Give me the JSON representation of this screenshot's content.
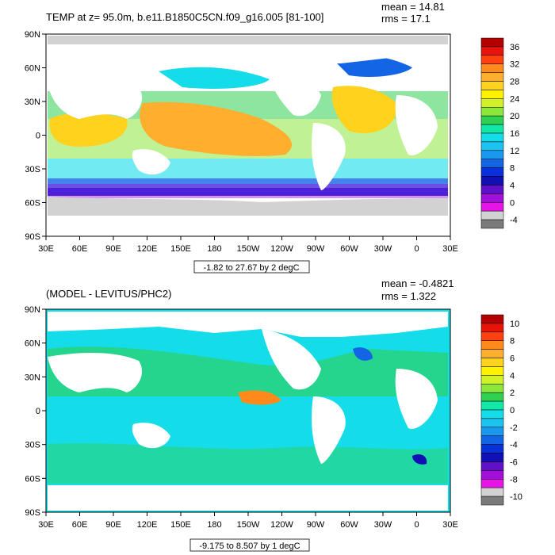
{
  "panel1": {
    "title": "TEMP at z=  95.0m, b.e11.B1850C5CN.f09_g16.005 [81-100]",
    "mean_text": "mean = 14.81",
    "rms_text": "rms = 17.1",
    "range_text": "-1.82 to 27.67 by 2 degC",
    "colorbar": {
      "labels": [
        "36",
        "32",
        "28",
        "24",
        "20",
        "16",
        "12",
        "8",
        "4",
        "0",
        "-4"
      ],
      "colors": [
        "#b40000",
        "#e8140c",
        "#ff4010",
        "#ff8a1c",
        "#ffae2e",
        "#ffd21e",
        "#fff200",
        "#d2f028",
        "#8ce63c",
        "#30d050",
        "#12e8a8",
        "#14dce8",
        "#1ec2f0",
        "#1a98f0",
        "#1464e6",
        "#0a30dc",
        "#1010b4",
        "#6010c8",
        "#a010d8",
        "#e614e6",
        "#d2d2d2",
        "#7a7a7a"
      ]
    }
  },
  "panel2": {
    "title": "(MODEL - LEVITUS/PHC2)",
    "mean_text": "mean = -0.4821",
    "rms_text": "rms = 1.322",
    "range_text": "-9.175 to 8.507 by 1 degC",
    "colorbar": {
      "labels": [
        "10",
        "8",
        "6",
        "4",
        "2",
        "0",
        "-2",
        "-4",
        "-6",
        "-8",
        "-10"
      ],
      "colors": [
        "#b40000",
        "#e8140c",
        "#ff4010",
        "#ff8a1c",
        "#ffae2e",
        "#ffd21e",
        "#fff200",
        "#d2f028",
        "#8ce63c",
        "#30d050",
        "#12e8a8",
        "#14dce8",
        "#1ec2f0",
        "#1a98f0",
        "#1464e6",
        "#0a30dc",
        "#1010b4",
        "#6010c8",
        "#a010d8",
        "#e614e6",
        "#d2d2d2",
        "#7a7a7a"
      ]
    }
  },
  "axes": {
    "lat_labels": [
      "90N",
      "60N",
      "30N",
      "0",
      "30S",
      "60S",
      "90S"
    ],
    "lon_labels": [
      "30E",
      "60E",
      "90E",
      "120E",
      "150E",
      "180",
      "150W",
      "120W",
      "90W",
      "60W",
      "30W",
      "0",
      "30E"
    ]
  }
}
